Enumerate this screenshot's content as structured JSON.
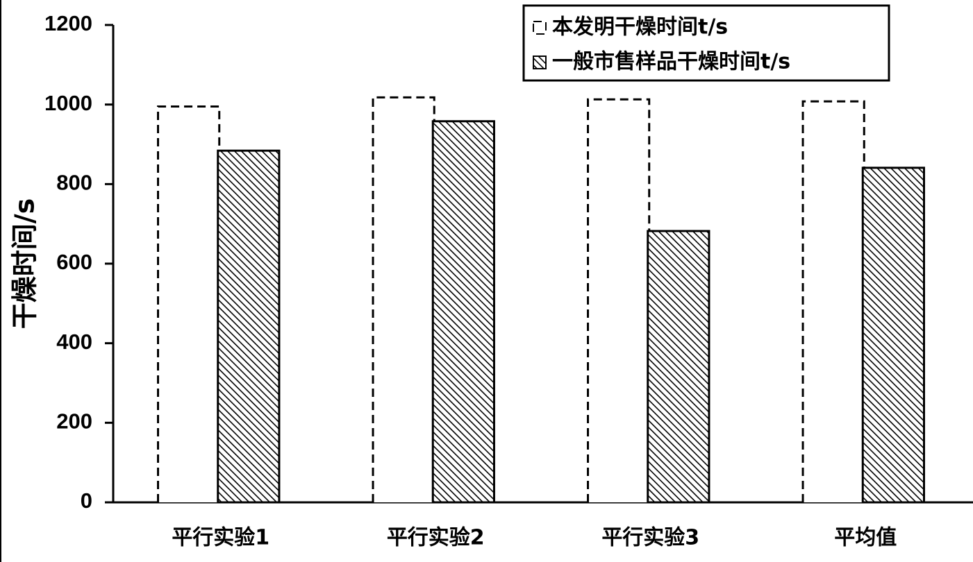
{
  "chart_data": {
    "type": "bar",
    "y_label": "干燥时间/s",
    "categories": [
      "平行实验1",
      "平行实验2",
      "平行实验3",
      "平均值"
    ],
    "series": [
      {
        "name": "本发明干燥时间t/s",
        "color": "#000000",
        "style": "dashed",
        "values": [
          995,
          1018,
          1013,
          1008
        ]
      },
      {
        "name": "一般市售样品干燥时间t/s",
        "color": "#000000",
        "style": "hatched",
        "values": [
          884,
          958,
          682,
          841
        ]
      }
    ],
    "ylim": [
      0,
      1200
    ],
    "yticks": [
      0,
      200,
      400,
      600,
      800,
      1000,
      1200
    ],
    "grid": false
  }
}
